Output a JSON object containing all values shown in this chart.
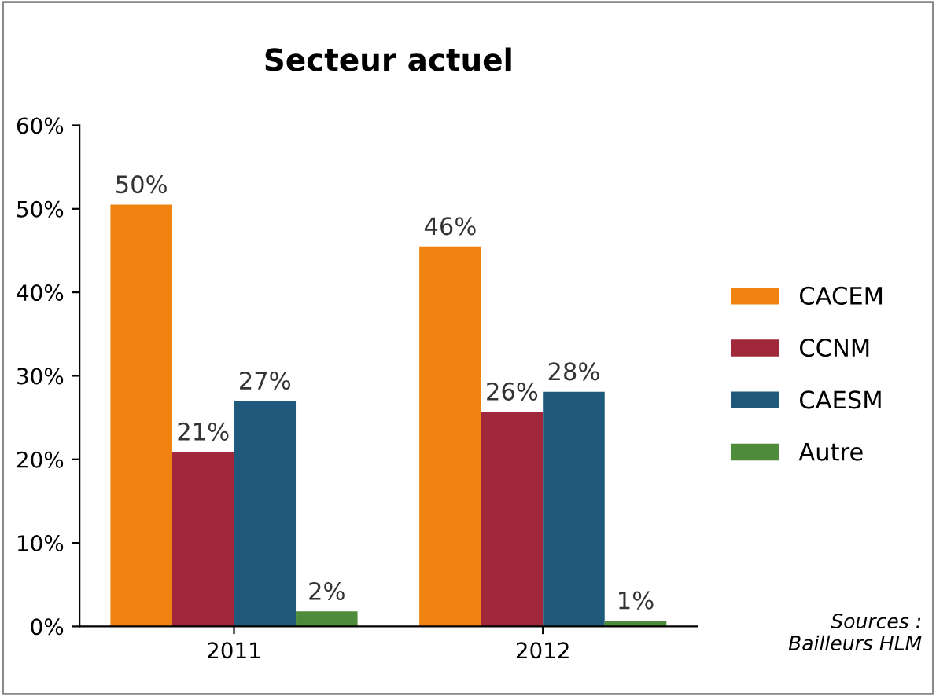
{
  "chart_data": {
    "type": "bar",
    "title": "Secteur actuel",
    "categories": [
      "2011",
      "2012"
    ],
    "series": [
      {
        "name": "CACEM",
        "color": "#f0820f",
        "values": [
          50.5,
          45.5
        ],
        "value_labels": [
          "50%",
          "46%"
        ]
      },
      {
        "name": "CCNM",
        "color": "#a0283a",
        "values": [
          20.9,
          25.7
        ],
        "value_labels": [
          "21%",
          "26%"
        ]
      },
      {
        "name": "CAESM",
        "color": "#1f5a7d",
        "values": [
          27.0,
          28.1
        ],
        "value_labels": [
          "27%",
          "28%"
        ]
      },
      {
        "name": "Autre",
        "color": "#4e8b3a",
        "values": [
          1.8,
          0.7
        ],
        "value_labels": [
          "2%",
          "1%"
        ]
      }
    ],
    "ylim": [
      0,
      60
    ],
    "yticks": [
      {
        "value": 0,
        "label": "0%"
      },
      {
        "value": 10,
        "label": "10%"
      },
      {
        "value": 20,
        "label": "20%"
      },
      {
        "value": 30,
        "label": "30%"
      },
      {
        "value": 40,
        "label": "40%"
      },
      {
        "value": 50,
        "label": "50%"
      },
      {
        "value": 60,
        "label": "60%"
      }
    ],
    "grid": false,
    "legend": "right",
    "annotations": [
      "Sources :\nBailleurs HLM"
    ]
  }
}
